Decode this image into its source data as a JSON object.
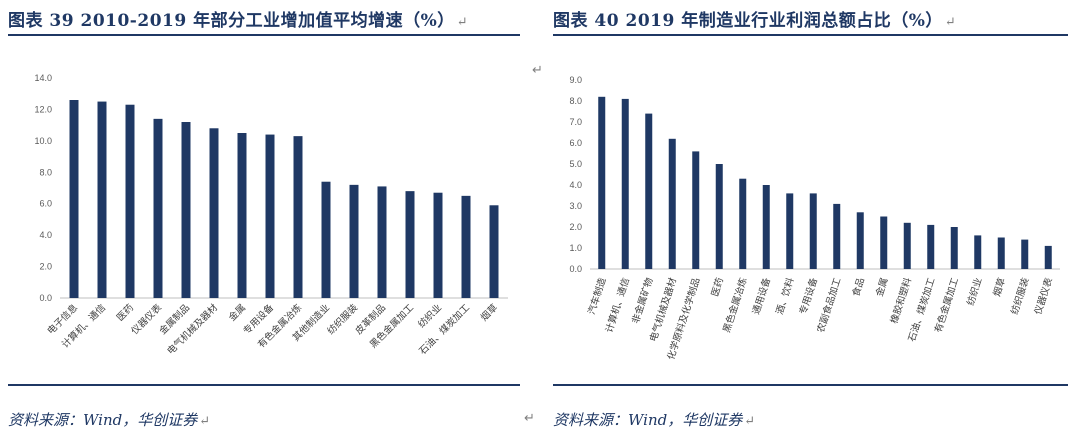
{
  "return_mark": "↵",
  "left": {
    "title": "图表 39   2010-2019 年部分工业增加值平均增速（%）",
    "source": "资料来源：Wind，华创证券",
    "chart_data": {
      "type": "bar",
      "categories": [
        "电子信息",
        "计算机、通信",
        "医药",
        "仪器仪表",
        "金属制品",
        "电气机械及器材",
        "金属",
        "专用设备",
        "有色金属冶炼",
        "其他制造业",
        "纺织服装",
        "皮革制品",
        "黑色金属加工",
        "纺织业",
        "石油、煤炭加工",
        "烟草"
      ],
      "values": [
        12.6,
        12.5,
        12.3,
        11.4,
        11.2,
        10.8,
        10.5,
        10.4,
        10.3,
        7.4,
        7.2,
        7.1,
        6.8,
        6.7,
        6.5,
        5.9
      ],
      "ylim": [
        0,
        14
      ],
      "yticks": [
        "0.0",
        "2.0",
        "4.0",
        "6.0",
        "8.0",
        "10.0",
        "12.0",
        "14.0"
      ],
      "color": "#1f3864",
      "grid": false
    }
  },
  "right": {
    "title": "图表 40   2019 年制造业行业利润总额占比（%）",
    "source": "资料来源：Wind，华创证券",
    "chart_data": {
      "type": "bar",
      "categories": [
        "汽车制造",
        "计算机、通信",
        "非金属矿物",
        "电气机械及器材",
        "化学原料及化学制品",
        "医药",
        "黑色金属冶炼",
        "通用设备",
        "酒、饮料",
        "专用设备",
        "农副食品加工",
        "食品",
        "金属",
        "橡胶和塑料",
        "石油、煤炭加工",
        "有色金属加工",
        "纺织业",
        "烟草",
        "纺织服装",
        "仪器仪表"
      ],
      "values": [
        8.2,
        8.1,
        7.4,
        6.2,
        5.6,
        5.0,
        4.3,
        4.0,
        3.6,
        3.6,
        3.1,
        2.7,
        2.5,
        2.2,
        2.1,
        2.0,
        1.6,
        1.5,
        1.4,
        1.1
      ],
      "ylim": [
        0,
        9
      ],
      "yticks": [
        "0.0",
        "1.0",
        "2.0",
        "3.0",
        "4.0",
        "5.0",
        "6.0",
        "7.0",
        "8.0",
        "9.0"
      ],
      "color": "#1f3864",
      "grid": false
    }
  }
}
